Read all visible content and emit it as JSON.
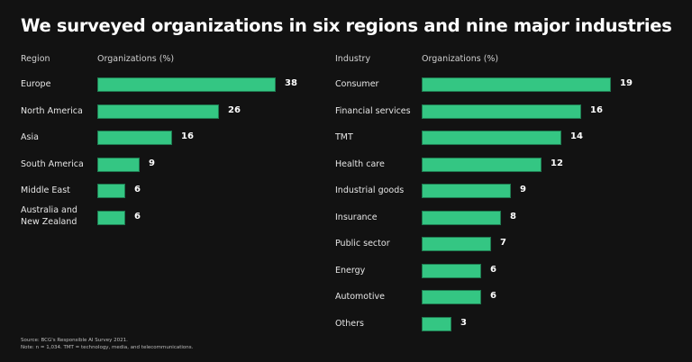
{
  "title": "We surveyed organizations in six regions and nine major industries",
  "footnotes": {
    "source": "Source: BCG's Responsible AI Survey 2021.",
    "note": "Note: n = 1,034. TMT = technology, media, and telecommunications."
  },
  "colors": {
    "bar": "#34c683",
    "background": "#121212"
  },
  "chart_data": [
    {
      "type": "bar",
      "orientation": "horizontal",
      "category_header": "Region",
      "value_header": "Organizations (%)",
      "categories": [
        "Europe",
        "North America",
        "Asia",
        "South America",
        "Middle East",
        "Australia and New Zealand"
      ],
      "values": [
        38,
        26,
        16,
        9,
        6,
        6
      ],
      "xlabel": "Organizations (%)",
      "ylabel": "Region",
      "grid": false
    },
    {
      "type": "bar",
      "orientation": "horizontal",
      "category_header": "Industry",
      "value_header": "Organizations (%)",
      "categories": [
        "Consumer",
        "Financial services",
        "TMT",
        "Health care",
        "Industrial goods",
        "Insurance",
        "Public sector",
        "Energy",
        "Automotive",
        "Others"
      ],
      "values": [
        19,
        16,
        14,
        12,
        9,
        8,
        7,
        6,
        6,
        3
      ],
      "xlabel": "Organizations (%)",
      "ylabel": "Industry",
      "grid": false
    }
  ]
}
